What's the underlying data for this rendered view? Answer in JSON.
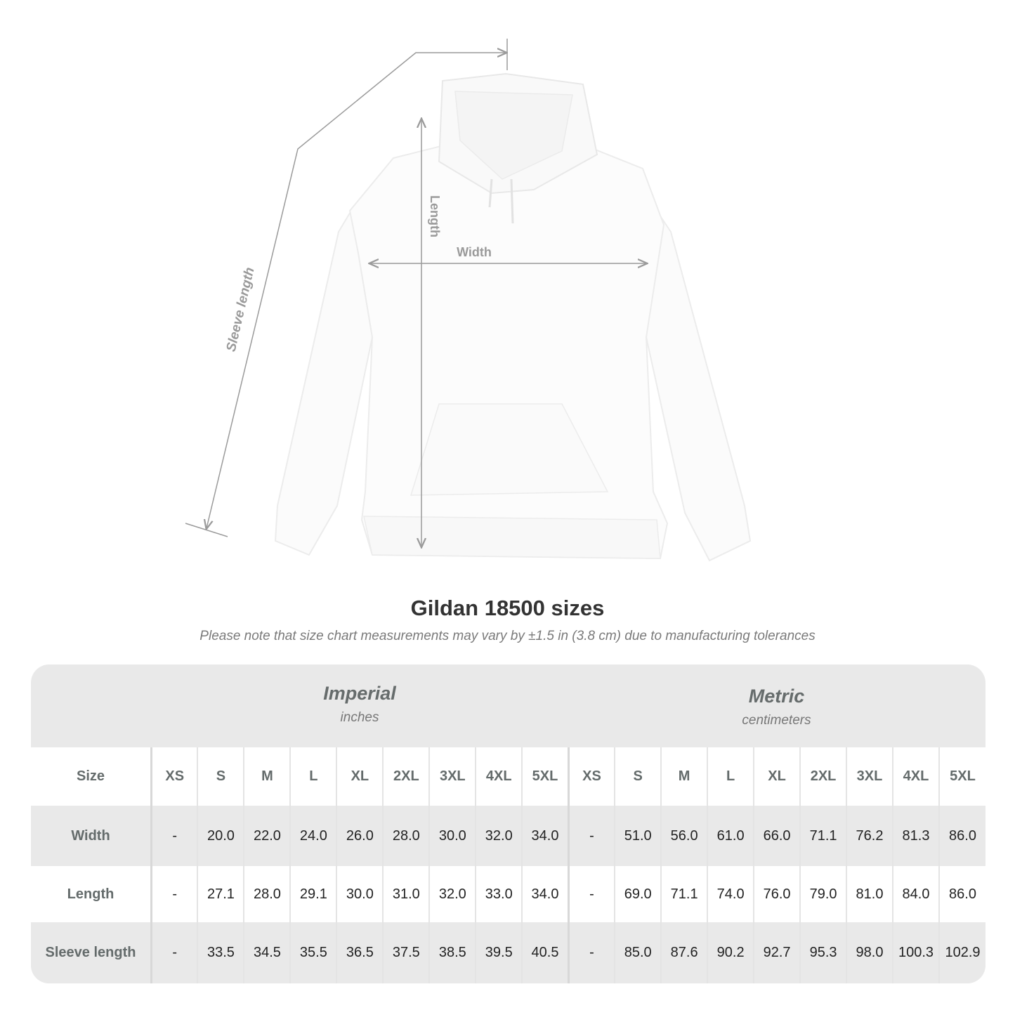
{
  "figure": {
    "labels": {
      "sleeve": "Sleeve length",
      "length": "Length",
      "width": "Width"
    },
    "line_color": "#9a9a9a"
  },
  "title": "Gildan 18500 sizes",
  "subtitle": "Please note that size chart measurements may vary by ±1.5 in (3.8 cm) due to manufacturing tolerances",
  "table": {
    "imperial": {
      "label": "Imperial",
      "unit": "inches"
    },
    "metric": {
      "label": "Metric",
      "unit": "centimeters"
    },
    "size_label": "Size",
    "sizes": [
      "XS",
      "S",
      "M",
      "L",
      "XL",
      "2XL",
      "3XL",
      "4XL",
      "5XL"
    ],
    "rows": [
      {
        "label": "Width",
        "imperial": [
          "-",
          "20.0",
          "22.0",
          "24.0",
          "26.0",
          "28.0",
          "30.0",
          "32.0",
          "34.0"
        ],
        "metric": [
          "-",
          "51.0",
          "56.0",
          "61.0",
          "66.0",
          "71.1",
          "76.2",
          "81.3",
          "86.0"
        ]
      },
      {
        "label": "Length",
        "imperial": [
          "-",
          "27.1",
          "28.0",
          "29.1",
          "30.0",
          "31.0",
          "32.0",
          "33.0",
          "34.0"
        ],
        "metric": [
          "-",
          "69.0",
          "71.1",
          "74.0",
          "76.0",
          "79.0",
          "81.0",
          "84.0",
          "86.0"
        ]
      },
      {
        "label": "Sleeve length",
        "imperial": [
          "-",
          "33.5",
          "34.5",
          "35.5",
          "36.5",
          "37.5",
          "38.5",
          "39.5",
          "40.5"
        ],
        "metric": [
          "-",
          "85.0",
          "87.6",
          "90.2",
          "92.7",
          "95.3",
          "98.0",
          "100.3",
          "102.9"
        ]
      }
    ]
  }
}
